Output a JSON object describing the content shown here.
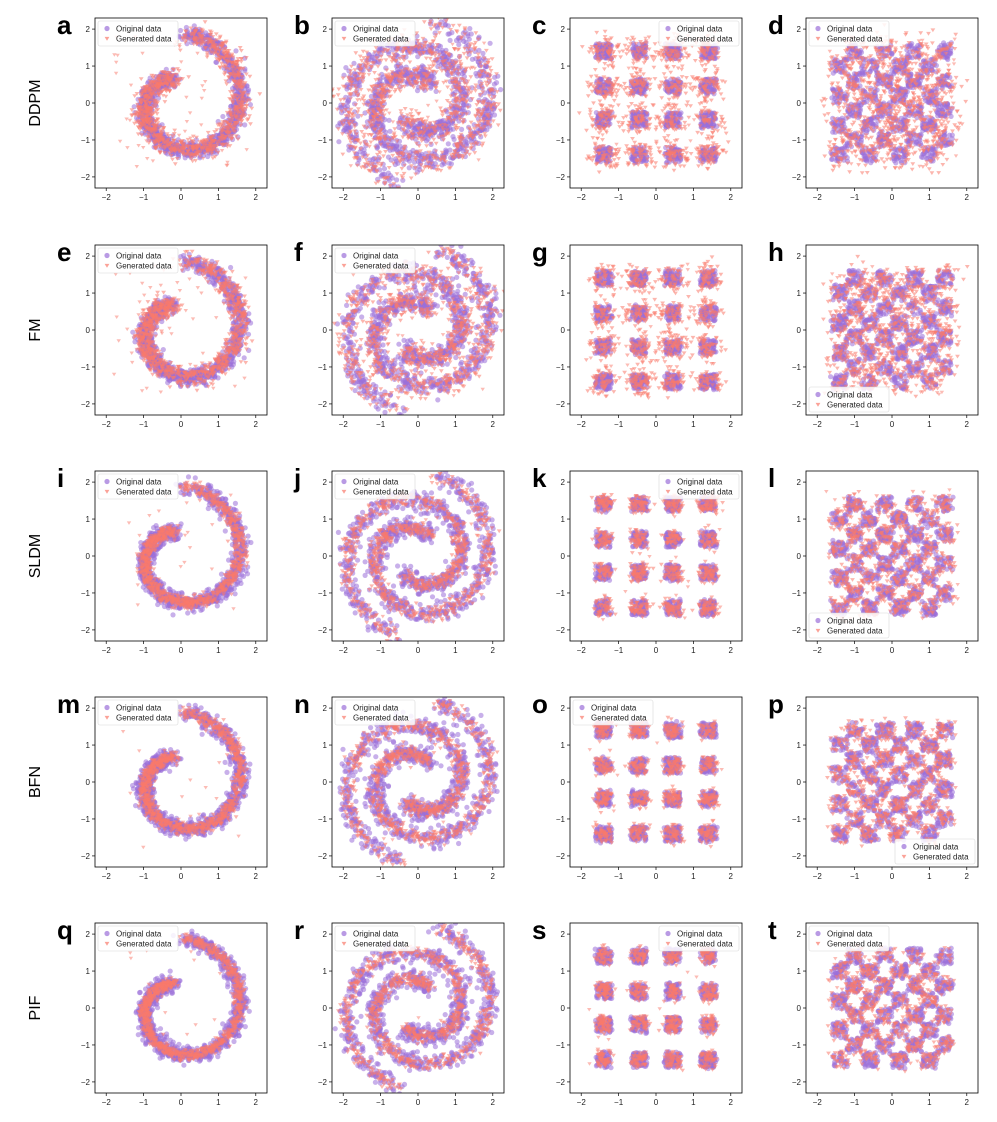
{
  "figure": {
    "row_labels": [
      "DDPM",
      "FM",
      "SLDM",
      "BFN",
      "PIF"
    ],
    "panel_letters": [
      "a",
      "b",
      "c",
      "d",
      "e",
      "f",
      "g",
      "h",
      "i",
      "j",
      "k",
      "l",
      "m",
      "n",
      "o",
      "p",
      "q",
      "r",
      "s",
      "t"
    ],
    "legend": {
      "original": "Original data",
      "generated": "Generated data"
    },
    "colors": {
      "original": "#9b6fd8",
      "generated": "#fa7a6c"
    }
  },
  "chart_data": [
    {
      "panel": "a",
      "method": "DDPM",
      "type": "scatter",
      "dataset": "spiral",
      "xlim": [
        -2.3,
        2.3
      ],
      "ylim": [
        -2.3,
        2.3
      ],
      "xticks": [
        -2,
        -1,
        0,
        1,
        2
      ],
      "yticks": [
        -2,
        -1,
        0,
        1,
        2
      ],
      "legend_position": "top-left",
      "series": [
        {
          "name": "Original data",
          "marker": "circle"
        },
        {
          "name": "Generated data",
          "marker": "triangle-down"
        }
      ]
    },
    {
      "panel": "b",
      "method": "DDPM",
      "type": "scatter",
      "dataset": "double-spiral",
      "xlim": [
        -2.3,
        2.3
      ],
      "ylim": [
        -2.3,
        2.3
      ],
      "xticks": [
        -2,
        -1,
        0,
        1,
        2
      ],
      "yticks": [
        -2,
        -1,
        0,
        1,
        2
      ],
      "legend_position": "top-left",
      "series": [
        {
          "name": "Original data",
          "marker": "circle"
        },
        {
          "name": "Generated data",
          "marker": "triangle-down"
        }
      ]
    },
    {
      "panel": "c",
      "method": "DDPM",
      "type": "scatter",
      "dataset": "4x4-grid",
      "xlim": [
        -2.3,
        2.3
      ],
      "ylim": [
        -2.3,
        2.3
      ],
      "xticks": [
        -2,
        -1,
        0,
        1,
        2
      ],
      "yticks": [
        -2,
        -1,
        0,
        1,
        2
      ],
      "legend_position": "top-right",
      "series": [
        {
          "name": "Original data",
          "marker": "circle"
        },
        {
          "name": "Generated data",
          "marker": "triangle-down"
        }
      ]
    },
    {
      "panel": "d",
      "method": "DDPM",
      "type": "scatter",
      "dataset": "checkerboard",
      "xlim": [
        -2.3,
        2.3
      ],
      "ylim": [
        -2.3,
        2.3
      ],
      "xticks": [
        -2,
        -1,
        0,
        1,
        2
      ],
      "yticks": [
        -2,
        -1,
        0,
        1,
        2
      ],
      "legend_position": "top-left",
      "series": [
        {
          "name": "Original data",
          "marker": "circle"
        },
        {
          "name": "Generated data",
          "marker": "triangle-down"
        }
      ]
    },
    {
      "panel": "e",
      "method": "FM",
      "type": "scatter",
      "dataset": "spiral",
      "xlim": [
        -2.3,
        2.3
      ],
      "ylim": [
        -2.3,
        2.3
      ],
      "xticks": [
        -2,
        -1,
        0,
        1,
        2
      ],
      "yticks": [
        -2,
        -1,
        0,
        1,
        2
      ],
      "legend_position": "top-left",
      "series": [
        {
          "name": "Original data",
          "marker": "circle"
        },
        {
          "name": "Generated data",
          "marker": "triangle-down"
        }
      ]
    },
    {
      "panel": "f",
      "method": "FM",
      "type": "scatter",
      "dataset": "double-spiral",
      "xlim": [
        -2.3,
        2.3
      ],
      "ylim": [
        -2.3,
        2.3
      ],
      "xticks": [
        -2,
        -1,
        0,
        1,
        2
      ],
      "yticks": [
        -2,
        -1,
        0,
        1,
        2
      ],
      "legend_position": "top-left",
      "series": [
        {
          "name": "Original data",
          "marker": "circle"
        },
        {
          "name": "Generated data",
          "marker": "triangle-down"
        }
      ]
    },
    {
      "panel": "g",
      "method": "FM",
      "type": "scatter",
      "dataset": "4x4-grid",
      "xlim": [
        -2.3,
        2.3
      ],
      "ylim": [
        -2.3,
        2.3
      ],
      "xticks": [
        -2,
        -1,
        0,
        1,
        2
      ],
      "yticks": [
        -2,
        -1,
        0,
        1,
        2
      ],
      "legend_position": "none",
      "series": [
        {
          "name": "Original data",
          "marker": "circle"
        },
        {
          "name": "Generated data",
          "marker": "triangle-down"
        }
      ]
    },
    {
      "panel": "h",
      "method": "FM",
      "type": "scatter",
      "dataset": "checkerboard",
      "xlim": [
        -2.3,
        2.3
      ],
      "ylim": [
        -2.3,
        2.3
      ],
      "xticks": [
        -2,
        -1,
        0,
        1,
        2
      ],
      "yticks": [
        -2,
        -1,
        0,
        1,
        2
      ],
      "legend_position": "bottom-left",
      "series": [
        {
          "name": "Original data",
          "marker": "circle"
        },
        {
          "name": "Generated data",
          "marker": "triangle-down"
        }
      ]
    },
    {
      "panel": "i",
      "method": "SLDM",
      "type": "scatter",
      "dataset": "spiral",
      "xlim": [
        -2.3,
        2.3
      ],
      "ylim": [
        -2.3,
        2.3
      ],
      "xticks": [
        -2,
        -1,
        0,
        1,
        2
      ],
      "yticks": [
        -2,
        -1,
        0,
        1,
        2
      ],
      "legend_position": "top-left",
      "series": [
        {
          "name": "Original data",
          "marker": "circle"
        },
        {
          "name": "Generated data",
          "marker": "triangle-down"
        }
      ]
    },
    {
      "panel": "j",
      "method": "SLDM",
      "type": "scatter",
      "dataset": "double-spiral",
      "xlim": [
        -2.3,
        2.3
      ],
      "ylim": [
        -2.3,
        2.3
      ],
      "xticks": [
        -2,
        -1,
        0,
        1,
        2
      ],
      "yticks": [
        -2,
        -1,
        0,
        1,
        2
      ],
      "legend_position": "top-left",
      "series": [
        {
          "name": "Original data",
          "marker": "circle"
        },
        {
          "name": "Generated data",
          "marker": "triangle-down"
        }
      ]
    },
    {
      "panel": "k",
      "method": "SLDM",
      "type": "scatter",
      "dataset": "4x4-grid",
      "xlim": [
        -2.3,
        2.3
      ],
      "ylim": [
        -2.3,
        2.3
      ],
      "xticks": [
        -2,
        -1,
        0,
        1,
        2
      ],
      "yticks": [
        -2,
        -1,
        0,
        1,
        2
      ],
      "legend_position": "top-right",
      "series": [
        {
          "name": "Original data",
          "marker": "circle"
        },
        {
          "name": "Generated data",
          "marker": "triangle-down"
        }
      ]
    },
    {
      "panel": "l",
      "method": "SLDM",
      "type": "scatter",
      "dataset": "checkerboard",
      "xlim": [
        -2.3,
        2.3
      ],
      "ylim": [
        -2.3,
        2.3
      ],
      "xticks": [
        -2,
        -1,
        0,
        1,
        2
      ],
      "yticks": [
        -2,
        -1,
        0,
        1,
        2
      ],
      "legend_position": "bottom-left",
      "series": [
        {
          "name": "Original data",
          "marker": "circle"
        },
        {
          "name": "Generated data",
          "marker": "triangle-down"
        }
      ]
    },
    {
      "panel": "m",
      "method": "BFN",
      "type": "scatter",
      "dataset": "spiral",
      "xlim": [
        -2.3,
        2.3
      ],
      "ylim": [
        -2.3,
        2.3
      ],
      "xticks": [
        -2,
        -1,
        0,
        1,
        2
      ],
      "yticks": [
        -2,
        -1,
        0,
        1,
        2
      ],
      "legend_position": "top-left",
      "series": [
        {
          "name": "Original data",
          "marker": "circle"
        },
        {
          "name": "Generated data",
          "marker": "triangle-down"
        }
      ]
    },
    {
      "panel": "n",
      "method": "BFN",
      "type": "scatter",
      "dataset": "double-spiral",
      "xlim": [
        -2.3,
        2.3
      ],
      "ylim": [
        -2.3,
        2.3
      ],
      "xticks": [
        -2,
        -1,
        0,
        1,
        2
      ],
      "yticks": [
        -2,
        -1,
        0,
        1,
        2
      ],
      "legend_position": "top-left",
      "series": [
        {
          "name": "Original data",
          "marker": "circle"
        },
        {
          "name": "Generated data",
          "marker": "triangle-down"
        }
      ]
    },
    {
      "panel": "o",
      "method": "BFN",
      "type": "scatter",
      "dataset": "4x4-grid",
      "xlim": [
        -2.3,
        2.3
      ],
      "ylim": [
        -2.3,
        2.3
      ],
      "xticks": [
        -2,
        -1,
        0,
        1,
        2
      ],
      "yticks": [
        -2,
        -1,
        0,
        1,
        2
      ],
      "legend_position": "top-left",
      "series": [
        {
          "name": "Original data",
          "marker": "circle"
        },
        {
          "name": "Generated data",
          "marker": "triangle-down"
        }
      ]
    },
    {
      "panel": "p",
      "method": "BFN",
      "type": "scatter",
      "dataset": "checkerboard",
      "xlim": [
        -2.3,
        2.3
      ],
      "ylim": [
        -2.3,
        2.3
      ],
      "xticks": [
        -2,
        -1,
        0,
        1,
        2
      ],
      "yticks": [
        -2,
        -1,
        0,
        1,
        2
      ],
      "legend_position": "bottom-right",
      "series": [
        {
          "name": "Original data",
          "marker": "circle"
        },
        {
          "name": "Generated data",
          "marker": "triangle-down"
        }
      ]
    },
    {
      "panel": "q",
      "method": "PIF",
      "type": "scatter",
      "dataset": "spiral",
      "xlim": [
        -2.3,
        2.3
      ],
      "ylim": [
        -2.3,
        2.3
      ],
      "xticks": [
        -2,
        -1,
        0,
        1,
        2
      ],
      "yticks": [
        -2,
        -1,
        0,
        1,
        2
      ],
      "legend_position": "top-left",
      "series": [
        {
          "name": "Original data",
          "marker": "circle"
        },
        {
          "name": "Generated data",
          "marker": "triangle-down"
        }
      ]
    },
    {
      "panel": "r",
      "method": "PIF",
      "type": "scatter",
      "dataset": "double-spiral",
      "xlim": [
        -2.3,
        2.3
      ],
      "ylim": [
        -2.3,
        2.3
      ],
      "xticks": [
        -2,
        -1,
        0,
        1,
        2
      ],
      "yticks": [
        -2,
        -1,
        0,
        1,
        2
      ],
      "legend_position": "top-left",
      "series": [
        {
          "name": "Original data",
          "marker": "circle"
        },
        {
          "name": "Generated data",
          "marker": "triangle-down"
        }
      ]
    },
    {
      "panel": "s",
      "method": "PIF",
      "type": "scatter",
      "dataset": "4x4-grid",
      "xlim": [
        -2.3,
        2.3
      ],
      "ylim": [
        -2.3,
        2.3
      ],
      "xticks": [
        -2,
        -1,
        0,
        1,
        2
      ],
      "yticks": [
        -2,
        -1,
        0,
        1,
        2
      ],
      "legend_position": "top-right",
      "series": [
        {
          "name": "Original data",
          "marker": "circle"
        },
        {
          "name": "Generated data",
          "marker": "triangle-down"
        }
      ]
    },
    {
      "panel": "t",
      "method": "PIF",
      "type": "scatter",
      "dataset": "checkerboard",
      "xlim": [
        -2.3,
        2.3
      ],
      "ylim": [
        -2.3,
        2.3
      ],
      "xticks": [
        -2,
        -1,
        0,
        1,
        2
      ],
      "yticks": [
        -2,
        -1,
        0,
        1,
        2
      ],
      "legend_position": "top-left",
      "series": [
        {
          "name": "Original data",
          "marker": "circle"
        },
        {
          "name": "Generated data",
          "marker": "triangle-down"
        }
      ]
    }
  ]
}
